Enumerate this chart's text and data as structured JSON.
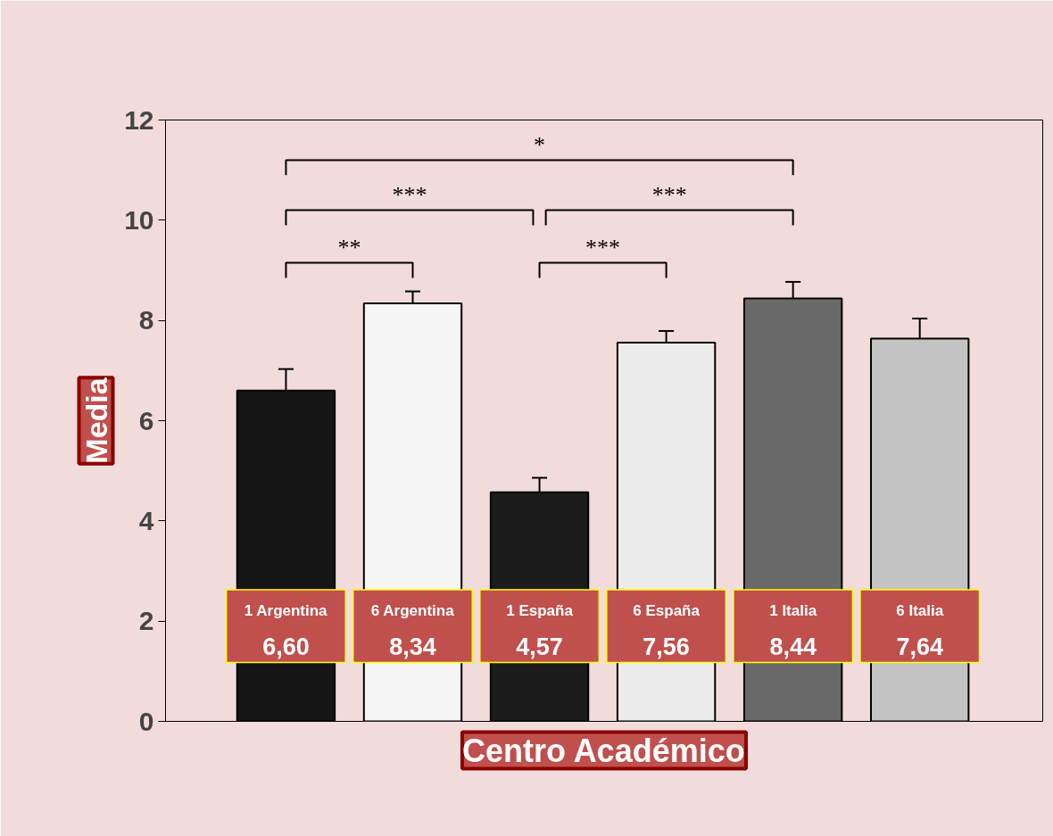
{
  "chart_data": {
    "type": "bar",
    "xlabel": "Centro Académico",
    "ylabel": "Media",
    "categories": [
      "1 Argentina",
      "6 Argentina",
      "1 España",
      "6 España",
      "1 Italia",
      "6 Italia"
    ],
    "values": [
      6.6,
      8.34,
      4.57,
      7.56,
      8.44,
      7.64
    ],
    "value_labels": [
      "6,60",
      "8,34",
      "4,57",
      "7,56",
      "8,44",
      "7,64"
    ],
    "colors": [
      "#151515",
      "#f5f5f5",
      "#1c1c1c",
      "#ececec",
      "#6a6a6a",
      "#c4c4c4"
    ],
    "errors": [
      [
        6.6,
        7.03
      ],
      [
        8.34,
        8.58
      ],
      [
        4.57,
        4.86
      ],
      [
        7.56,
        7.79
      ],
      [
        8.44,
        8.77
      ],
      [
        7.64,
        8.04
      ]
    ],
    "ylim": [
      0,
      12
    ],
    "yticks": [
      0,
      2,
      4,
      6,
      8,
      10,
      12
    ],
    "grid": false,
    "tick_labels": "y",
    "annotations": [
      "*",
      "***",
      "***",
      "**",
      "***"
    ]
  }
}
